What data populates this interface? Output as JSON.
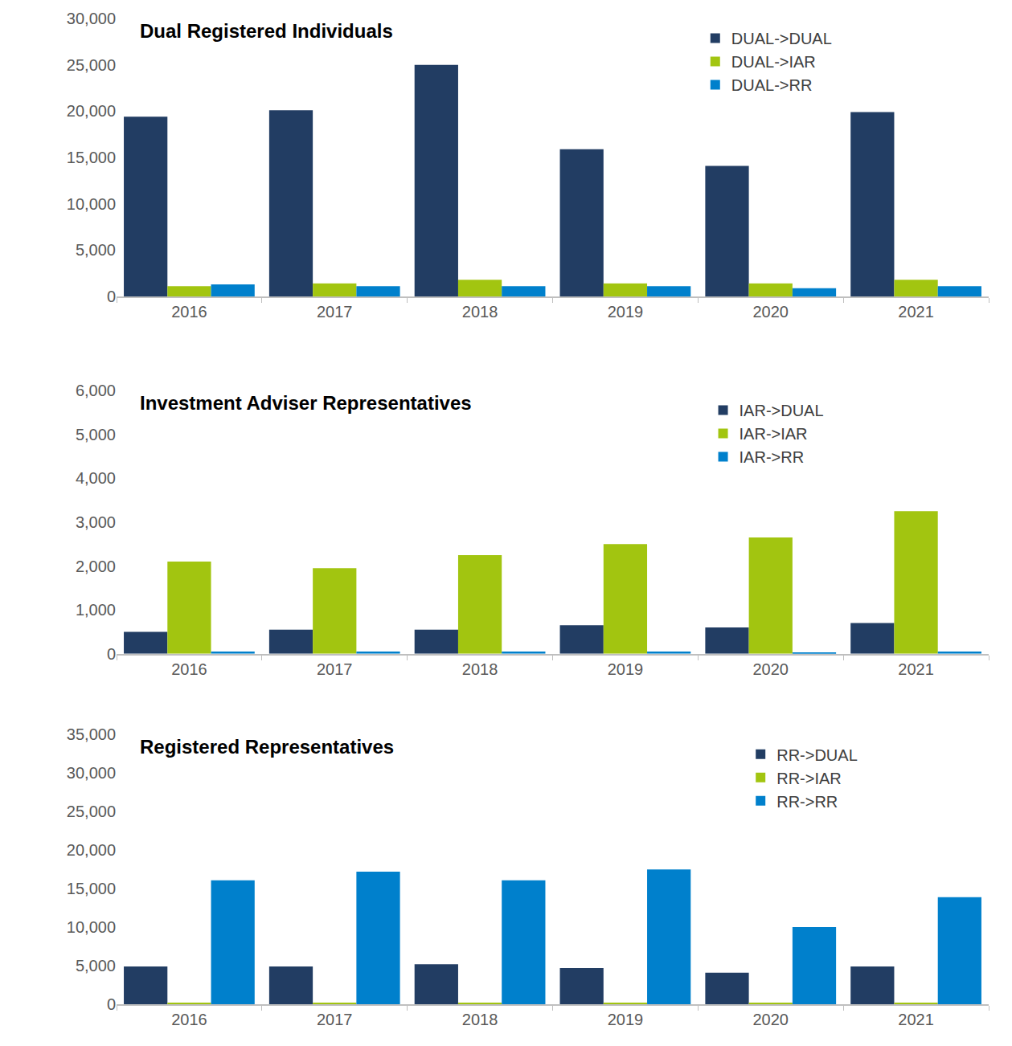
{
  "chart_data": [
    {
      "type": "bar",
      "title": "Dual Registered Individuals",
      "categories": [
        "2016",
        "2017",
        "2018",
        "2019",
        "2020",
        "2021"
      ],
      "series": [
        {
          "name": "DUAL->DUAL",
          "color": "#223d63",
          "values": [
            19400,
            20100,
            25000,
            15900,
            14100,
            19900
          ]
        },
        {
          "name": "DUAL->IAR",
          "color": "#a2c510",
          "values": [
            1100,
            1400,
            1800,
            1400,
            1400,
            1800
          ]
        },
        {
          "name": "DUAL->RR",
          "color": "#0080cc",
          "values": [
            1300,
            1100,
            1100,
            1100,
            900,
            1100
          ]
        }
      ],
      "ylim": [
        0,
        30000
      ],
      "yticks": [
        0,
        {
          "value": 5000,
          "label": "5,000"
        },
        {
          "value": 10000,
          "label": "10,000"
        },
        {
          "value": 15000,
          "label": "15,000"
        },
        {
          "value": 20000,
          "label": "20,000"
        },
        {
          "value": 25000,
          "label": "25,000"
        },
        {
          "value": 30000,
          "label": "30,000"
        }
      ],
      "grid": false,
      "legend": "upper right"
    },
    {
      "type": "bar",
      "title": "Investment Adviser Representatives",
      "categories": [
        "2016",
        "2017",
        "2018",
        "2019",
        "2020",
        "2021"
      ],
      "series": [
        {
          "name": "IAR->DUAL",
          "color": "#223d63",
          "values": [
            500,
            550,
            550,
            650,
            600,
            700
          ]
        },
        {
          "name": "IAR->IAR",
          "color": "#a2c510",
          "values": [
            2100,
            1950,
            2250,
            2500,
            2650,
            3250
          ]
        },
        {
          "name": "IAR->RR",
          "color": "#0080cc",
          "values": [
            50,
            50,
            50,
            50,
            30,
            50
          ]
        }
      ],
      "ylim": [
        0,
        6000
      ],
      "yticks": [
        0,
        {
          "value": 1000,
          "label": "1,000"
        },
        {
          "value": 2000,
          "label": "2,000"
        },
        {
          "value": 3000,
          "label": "3,000"
        },
        {
          "value": 4000,
          "label": "4,000"
        },
        {
          "value": 5000,
          "label": "5,000"
        },
        {
          "value": 6000,
          "label": "6,000"
        }
      ],
      "grid": false,
      "legend": "upper right"
    },
    {
      "type": "bar",
      "title": "Registered Representatives",
      "categories": [
        "2016",
        "2017",
        "2018",
        "2019",
        "2020",
        "2021"
      ],
      "series": [
        {
          "name": "RR->DUAL",
          "color": "#223d63",
          "values": [
            4900,
            4900,
            5200,
            4700,
            4100,
            4900
          ]
        },
        {
          "name": "RR->IAR",
          "color": "#a2c510",
          "values": [
            200,
            200,
            200,
            200,
            200,
            200
          ]
        },
        {
          "name": "RR->RR",
          "color": "#0080cc",
          "values": [
            16100,
            17200,
            16100,
            17500,
            10000,
            13900
          ]
        }
      ],
      "ylim": [
        0,
        35000
      ],
      "yticks": [
        0,
        {
          "value": 5000,
          "label": "5,000"
        },
        {
          "value": 10000,
          "label": "10,000"
        },
        {
          "value": 15000,
          "label": "15,000"
        },
        {
          "value": 20000,
          "label": "20,000"
        },
        {
          "value": 25000,
          "label": "25,000"
        },
        {
          "value": 30000,
          "label": "30,000"
        },
        {
          "value": 35000,
          "label": "35,000"
        }
      ],
      "grid": false,
      "legend": "upper right"
    }
  ]
}
